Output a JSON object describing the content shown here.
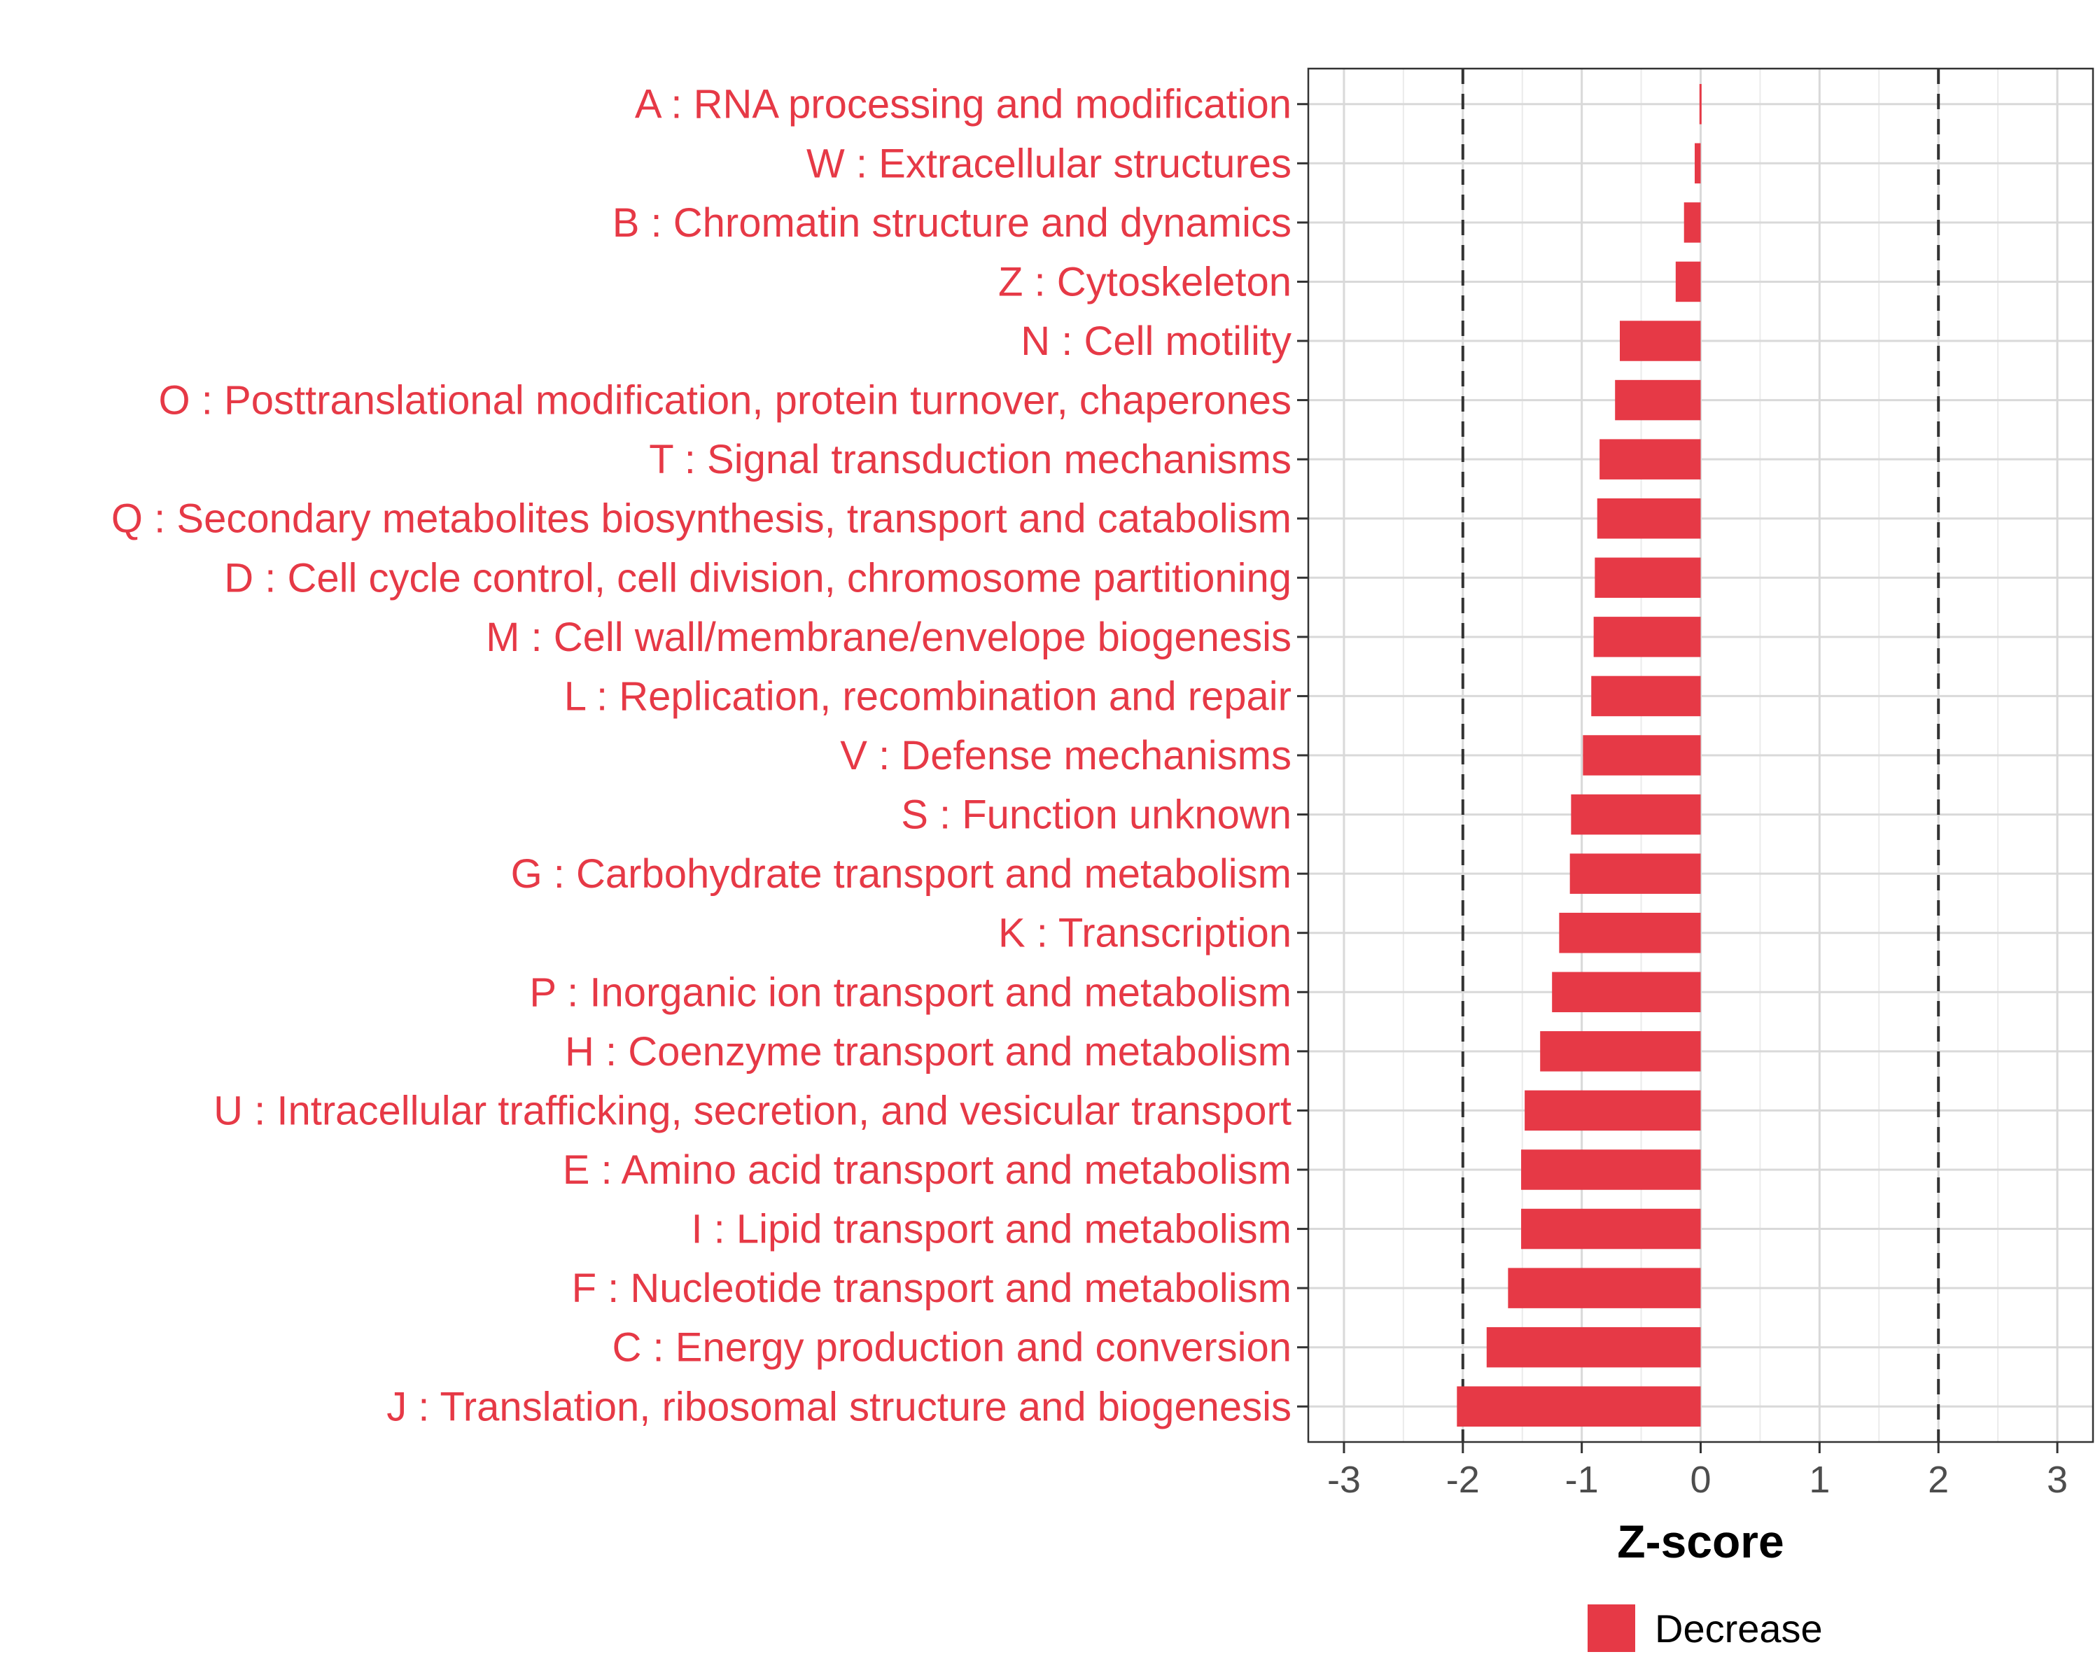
{
  "chart_data": {
    "type": "bar",
    "orientation": "horizontal",
    "categories": [
      "A : RNA processing and modification",
      "W : Extracellular structures",
      "B : Chromatin structure and dynamics",
      "Z : Cytoskeleton",
      "N : Cell motility",
      "O : Posttranslational modification, protein turnover, chaperones",
      "T : Signal transduction mechanisms",
      "Q : Secondary metabolites biosynthesis, transport and catabolism",
      "D : Cell cycle control, cell division, chromosome partitioning",
      "M : Cell wall/membrane/envelope biogenesis",
      "L : Replication, recombination and repair",
      "V : Defense mechanisms",
      "S : Function unknown",
      "G : Carbohydrate transport and metabolism",
      "K : Transcription",
      "P : Inorganic ion transport and metabolism",
      "H : Coenzyme transport and metabolism",
      "U : Intracellular trafficking, secretion, and vesicular transport",
      "E : Amino acid transport and metabolism",
      "I : Lipid transport and metabolism",
      "F : Nucleotide transport and metabolism",
      "C : Energy production and conversion",
      "J : Translation, ribosomal structure and biogenesis"
    ],
    "values": [
      -0.01,
      -0.05,
      -0.14,
      -0.21,
      -0.68,
      -0.72,
      -0.85,
      -0.87,
      -0.89,
      -0.9,
      -0.92,
      -0.99,
      -1.09,
      -1.1,
      -1.19,
      -1.25,
      -1.35,
      -1.48,
      -1.51,
      -1.51,
      -1.62,
      -1.8,
      -2.05
    ],
    "series": [
      {
        "name": "Decrease",
        "color": "#e63946"
      }
    ],
    "xlabel": "Z-score",
    "ylabel": "",
    "xlim": [
      -3.3,
      3.3
    ],
    "x_ticks": [
      -3,
      -2,
      -1,
      0,
      1,
      2,
      3
    ],
    "reference_lines": [
      -2,
      2
    ],
    "grid": true,
    "legend_position": "bottom",
    "label_color": "#e63946"
  }
}
